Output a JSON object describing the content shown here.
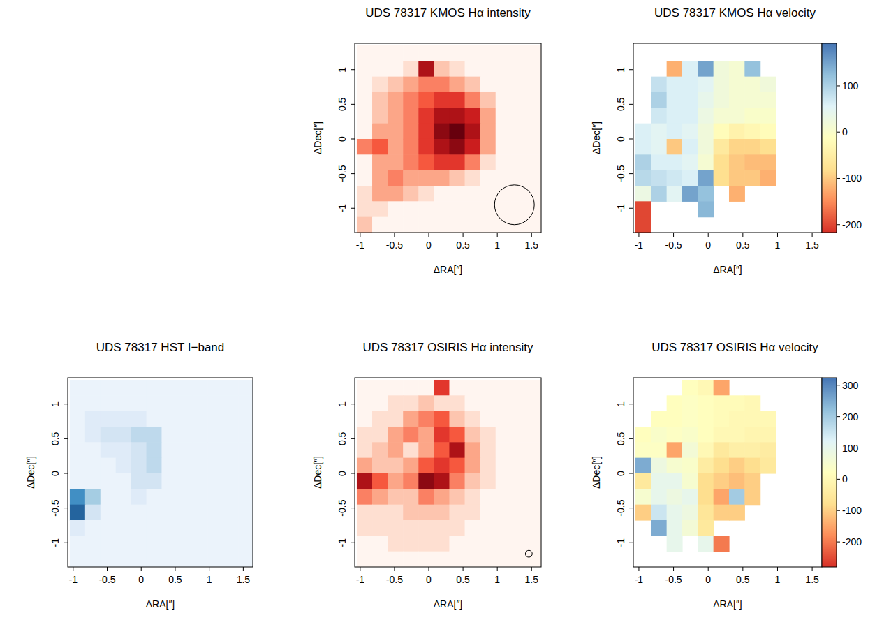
{
  "chart_data": [
    {
      "type": "heatmap",
      "title": "UDS 78317 KMOS Hα intensity",
      "x_label": "ΔRA[″]",
      "y_label": "ΔDec[″]",
      "color": "Reds",
      "xlim": [
        -1.08,
        1.64
      ],
      "ylim": [
        -1.35,
        1.38
      ],
      "xticks": [
        -1,
        -0.5,
        0,
        0.5,
        1,
        1.5
      ],
      "yticks": [
        -1,
        -0.5,
        0,
        0.5,
        1
      ],
      "x": [
        -0.9375,
        -0.7125,
        -0.4875,
        -0.2625,
        -0.0375,
        0.1875,
        0.4125,
        0.6375,
        0.8625,
        1.0875,
        1.3125,
        1.5375
      ],
      "y": [
        1.2375,
        1.0125,
        0.7875,
        0.5625,
        0.3375,
        0.1125,
        -0.1125,
        -0.3375,
        -0.5625,
        -0.7875,
        -1.0125,
        -1.2375
      ],
      "zlim": [
        0,
        10
      ],
      "cells": [
        [
          0,
          0,
          0,
          0,
          0,
          0,
          0,
          0,
          0,
          0,
          0,
          0
        ],
        [
          0,
          0,
          0,
          1,
          8,
          2,
          1,
          0,
          0,
          0,
          0,
          0
        ],
        [
          0,
          1,
          2,
          3,
          4,
          4,
          3,
          2,
          0,
          0,
          0,
          0
        ],
        [
          0,
          2,
          3,
          4,
          5,
          6,
          6,
          4,
          2,
          0,
          0,
          0
        ],
        [
          0,
          2,
          3,
          4,
          6,
          8,
          8,
          7,
          3,
          0,
          0,
          0
        ],
        [
          0,
          3,
          3,
          4,
          6,
          9,
          10,
          8,
          3,
          0,
          0,
          0
        ],
        [
          4,
          5,
          3,
          4,
          6,
          8,
          9,
          7,
          3,
          0,
          0,
          0
        ],
        [
          0,
          3,
          3,
          4,
          5,
          6,
          6,
          4,
          1,
          0,
          0,
          0
        ],
        [
          0,
          3,
          4,
          3,
          3,
          3,
          2,
          1,
          0,
          0,
          0,
          0
        ],
        [
          1,
          3,
          3,
          2,
          1,
          0,
          0,
          0,
          0,
          0,
          0,
          0
        ],
        [
          1,
          1,
          0,
          0,
          0,
          0,
          0,
          0,
          0,
          0,
          0,
          0
        ],
        [
          2,
          0,
          0,
          0,
          0,
          0,
          0,
          0,
          0,
          0,
          0,
          0
        ]
      ],
      "beam": {
        "x": 1.25,
        "y": -0.95,
        "radius": 0.29
      }
    },
    {
      "type": "heatmap",
      "title": "UDS 78317 KMOS Hα velocity",
      "x_label": "ΔRA[″]",
      "y_label": "ΔDec[″]",
      "color": "RdYlBu",
      "xlim": [
        -1.08,
        1.64
      ],
      "ylim": [
        -1.35,
        1.38
      ],
      "xticks": [
        -1,
        -0.5,
        0,
        0.5,
        1,
        1.5
      ],
      "yticks": [
        -1,
        -0.5,
        0,
        0.5,
        1
      ],
      "x": [
        -0.9375,
        -0.7125,
        -0.4875,
        -0.2625,
        -0.0375,
        0.1875,
        0.4125,
        0.6375,
        0.8625,
        1.0875,
        1.3125,
        1.5375
      ],
      "y": [
        1.2375,
        1.0125,
        0.7875,
        0.5625,
        0.3375,
        0.1125,
        -0.1125,
        -0.3375,
        -0.5625,
        -0.7875,
        -1.0125,
        -1.2375
      ],
      "colorbar": {
        "range": [
          -217,
          192
        ],
        "ticks": [
          -200,
          -100,
          0,
          100
        ]
      },
      "cells": [
        [
          null,
          null,
          null,
          null,
          null,
          null,
          null,
          null,
          null,
          null,
          null,
          null
        ],
        [
          null,
          null,
          -120,
          60,
          150,
          20,
          10,
          120,
          null,
          null,
          null,
          null
        ],
        [
          null,
          80,
          60,
          60,
          50,
          20,
          10,
          10,
          20,
          null,
          null,
          null
        ],
        [
          null,
          100,
          60,
          60,
          40,
          20,
          10,
          10,
          10,
          null,
          null,
          null
        ],
        [
          null,
          70,
          60,
          60,
          30,
          10,
          10,
          0,
          0,
          null,
          null,
          null
        ],
        [
          60,
          50,
          60,
          50,
          20,
          -20,
          -40,
          -30,
          -20,
          null,
          null,
          null
        ],
        [
          60,
          50,
          -100,
          60,
          20,
          -60,
          -90,
          -90,
          -80,
          null,
          null,
          null
        ],
        [
          100,
          60,
          60,
          50,
          10,
          -80,
          -100,
          -110,
          -110,
          null,
          null,
          null
        ],
        [
          90,
          80,
          70,
          60,
          150,
          -80,
          -100,
          -100,
          -120,
          null,
          null,
          null
        ],
        [
          30,
          100,
          50,
          150,
          120,
          null,
          -120,
          null,
          null,
          null,
          null,
          null
        ],
        [
          -200,
          null,
          null,
          null,
          130,
          null,
          null,
          null,
          null,
          null,
          null,
          null
        ],
        [
          -200,
          null,
          null,
          null,
          null,
          null,
          null,
          null,
          null,
          null,
          null,
          null
        ]
      ]
    },
    {
      "type": "heatmap",
      "title": "UDS 78317 HST I−band",
      "x_label": "ΔRA[″]",
      "y_label": "ΔDec[″]",
      "color": "Blues",
      "xlim": [
        -1.08,
        1.64
      ],
      "ylim": [
        -1.35,
        1.38
      ],
      "xticks": [
        -1,
        -0.5,
        0,
        0.5,
        1,
        1.5
      ],
      "yticks": [
        -1,
        -0.5,
        0,
        0.5,
        1
      ],
      "x": [
        -0.9375,
        -0.7125,
        -0.4875,
        -0.2625,
        -0.0375,
        0.1875,
        0.4125,
        0.6375,
        0.8625,
        1.0875,
        1.3125,
        1.5375
      ],
      "y": [
        1.2375,
        1.0125,
        0.7875,
        0.5625,
        0.3375,
        0.1125,
        -0.1125,
        -0.3375,
        -0.5625,
        -0.7875,
        -1.0125,
        -1.2375
      ],
      "zlim": [
        0,
        10
      ],
      "cells": [
        [
          1,
          1,
          1,
          1,
          1,
          1,
          1,
          1,
          1,
          1,
          1,
          1
        ],
        [
          1,
          1,
          1,
          1,
          1,
          1,
          1,
          1,
          1,
          1,
          1,
          1
        ],
        [
          1,
          2,
          2,
          2,
          2,
          1,
          1,
          1,
          1,
          1,
          1,
          1
        ],
        [
          1,
          2,
          3,
          3,
          4,
          4,
          1,
          1,
          1,
          1,
          1,
          1
        ],
        [
          1,
          1,
          2,
          2,
          3,
          4,
          1,
          1,
          1,
          1,
          1,
          1
        ],
        [
          1,
          1,
          1,
          2,
          3,
          4,
          1,
          1,
          1,
          1,
          1,
          1
        ],
        [
          1,
          1,
          1,
          1,
          3,
          3,
          1,
          1,
          1,
          1,
          1,
          1
        ],
        [
          8,
          5,
          1,
          1,
          2,
          1,
          1,
          1,
          1,
          1,
          1,
          1
        ],
        [
          9,
          3,
          1,
          1,
          1,
          1,
          1,
          1,
          1,
          1,
          1,
          1
        ],
        [
          2,
          1,
          1,
          1,
          1,
          1,
          1,
          1,
          1,
          1,
          1,
          1
        ],
        [
          1,
          1,
          1,
          1,
          1,
          1,
          1,
          1,
          1,
          1,
          1,
          1
        ],
        [
          1,
          1,
          1,
          1,
          1,
          1,
          1,
          1,
          1,
          1,
          1,
          1
        ]
      ]
    },
    {
      "type": "heatmap",
      "title": "UDS 78317 OSIRIS Hα intensity",
      "x_label": "ΔRA[″]",
      "y_label": "ΔDec[″]",
      "color": "Reds",
      "xlim": [
        -1.08,
        1.64
      ],
      "ylim": [
        -1.35,
        1.38
      ],
      "xticks": [
        -1,
        -0.5,
        0,
        0.5,
        1,
        1.5
      ],
      "yticks": [
        -1,
        -0.5,
        0,
        0.5,
        1
      ],
      "x": [
        -0.9375,
        -0.7125,
        -0.4875,
        -0.2625,
        -0.0375,
        0.1875,
        0.4125,
        0.6375,
        0.8625,
        1.0875,
        1.3125,
        1.5375
      ],
      "y": [
        1.2375,
        1.0125,
        0.7875,
        0.5625,
        0.3375,
        0.1125,
        -0.1125,
        -0.3375,
        -0.5625,
        -0.7875,
        -1.0125,
        -1.2375
      ],
      "zlim": [
        0,
        10
      ],
      "cells": [
        [
          0,
          0,
          0,
          0,
          0,
          6,
          0,
          0,
          0,
          0,
          0,
          0
        ],
        [
          0,
          0,
          1,
          1,
          2,
          1,
          1,
          0,
          0,
          0,
          0,
          0
        ],
        [
          0,
          1,
          1,
          3,
          4,
          5,
          2,
          1,
          0,
          0,
          0,
          0
        ],
        [
          1,
          1,
          3,
          4,
          3,
          6,
          5,
          2,
          1,
          0,
          0,
          0
        ],
        [
          1,
          2,
          3,
          1,
          3,
          5,
          8,
          3,
          1,
          0,
          0,
          0
        ],
        [
          3,
          2,
          2,
          3,
          5,
          6,
          5,
          3,
          1,
          0,
          0,
          0
        ],
        [
          8,
          5,
          3,
          4,
          9,
          8,
          4,
          2,
          1,
          0,
          0,
          0
        ],
        [
          4,
          3,
          2,
          2,
          4,
          3,
          2,
          1,
          0,
          0,
          0,
          0
        ],
        [
          1,
          1,
          1,
          2,
          2,
          2,
          1,
          1,
          0,
          0,
          0,
          0
        ],
        [
          1,
          1,
          1,
          1,
          1,
          1,
          1,
          0,
          0,
          0,
          0,
          0
        ],
        [
          0,
          0,
          1,
          1,
          1,
          1,
          0,
          0,
          0,
          0,
          0,
          0
        ],
        [
          0,
          0,
          0,
          0,
          0,
          0,
          0,
          0,
          0,
          0,
          0,
          0
        ]
      ],
      "beam": {
        "x": 1.46,
        "y": -1.16,
        "radius": 0.05
      }
    },
    {
      "type": "heatmap",
      "title": "UDS 78317 OSIRIS Hα velocity",
      "x_label": "ΔRA[″]",
      "y_label": "ΔDec[″]",
      "color": "RdYlBu",
      "xlim": [
        -1.08,
        1.64
      ],
      "ylim": [
        -1.35,
        1.38
      ],
      "xticks": [
        -1,
        -0.5,
        0,
        0.5,
        1,
        1.5
      ],
      "yticks": [
        -1,
        -0.5,
        0,
        0.5,
        1
      ],
      "x": [
        -0.9375,
        -0.7125,
        -0.4875,
        -0.2625,
        -0.0375,
        0.1875,
        0.4125,
        0.6375,
        0.8625,
        1.0875,
        1.3125,
        1.5375
      ],
      "y": [
        1.2375,
        1.0125,
        0.7875,
        0.5625,
        0.3375,
        0.1125,
        -0.1125,
        -0.3375,
        -0.5625,
        -0.7875,
        -1.0125,
        -1.2375
      ],
      "colorbar": {
        "range": [
          -280,
          324
        ],
        "ticks": [
          -200,
          -100,
          0,
          100,
          200,
          300
        ]
      },
      "cells": [
        [
          null,
          null,
          null,
          20,
          0,
          -150,
          null,
          null,
          null,
          null,
          null,
          null
        ],
        [
          null,
          null,
          20,
          30,
          20,
          10,
          10,
          0,
          null,
          null,
          null,
          null
        ],
        [
          null,
          20,
          20,
          30,
          20,
          10,
          0,
          0,
          0,
          null,
          null,
          null
        ],
        [
          20,
          40,
          30,
          40,
          20,
          0,
          0,
          -10,
          -10,
          null,
          null,
          null
        ],
        [
          30,
          30,
          -150,
          60,
          0,
          -50,
          -30,
          -30,
          -40,
          null,
          null,
          null
        ],
        [
          250,
          80,
          50,
          40,
          -40,
          -80,
          -100,
          -80,
          -50,
          null,
          null,
          null
        ],
        [
          -50,
          100,
          100,
          50,
          -80,
          -100,
          -120,
          -100,
          null,
          null,
          null,
          null
        ],
        [
          50,
          100,
          80,
          100,
          -80,
          -150,
          200,
          -100,
          null,
          null,
          null,
          null
        ],
        [
          -100,
          150,
          100,
          80,
          -60,
          -100,
          -100,
          null,
          null,
          null,
          null,
          null
        ],
        [
          null,
          250,
          100,
          60,
          -50,
          null,
          null,
          null,
          null,
          null,
          null,
          null
        ],
        [
          null,
          null,
          100,
          null,
          100,
          -200,
          null,
          null,
          null,
          null,
          null,
          null
        ],
        [
          null,
          null,
          null,
          null,
          null,
          null,
          null,
          null,
          null,
          null,
          null,
          null
        ]
      ]
    }
  ]
}
